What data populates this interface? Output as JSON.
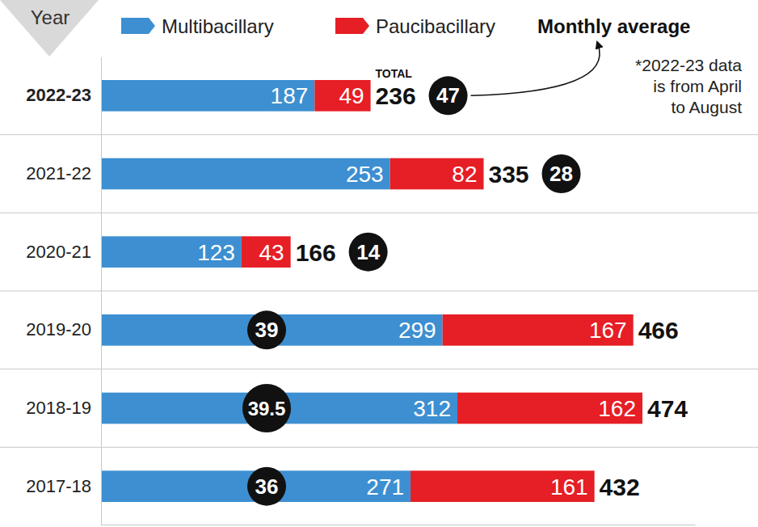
{
  "chart_data": {
    "type": "bar",
    "orientation": "horizontal",
    "stacked": true,
    "data_labels": true,
    "tick_labels": "y",
    "y_label": "Year",
    "categories": [
      "2022-23",
      "2021-22",
      "2020-21",
      "2019-20",
      "2018-19",
      "2017-18"
    ],
    "series": [
      {
        "name": "Multibacillary",
        "color": "#3d8fd1",
        "values": [
          187,
          253,
          123,
          299,
          312,
          271
        ]
      },
      {
        "name": "Paucibacillary",
        "color": "#e61e25",
        "values": [
          49,
          82,
          43,
          167,
          162,
          161
        ]
      }
    ],
    "xlim": [
      0,
      520
    ],
    "total_label": "TOTAL",
    "totals": [
      236,
      335,
      166,
      466,
      474,
      432
    ],
    "monthly_average_label": "Monthly average",
    "monthly_average": [
      47,
      28,
      14,
      39,
      39.5,
      36
    ],
    "note": [
      "*2022-23 data",
      "is from April",
      "to August"
    ]
  }
}
